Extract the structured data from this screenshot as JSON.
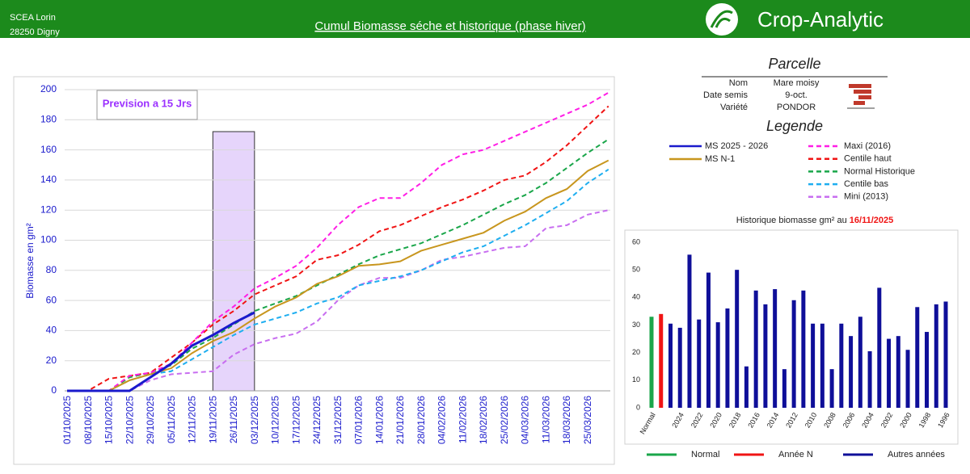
{
  "header": {
    "farm": "SCEA Lorin",
    "address": "28250 Digny",
    "title": "Cumul Biomasse séche et historique (phase hiver)",
    "brand": "Crop-Analytic"
  },
  "parcelle": {
    "title": "Parcelle",
    "rows": [
      [
        "Nom",
        "Mare moisy"
      ],
      [
        "Date semis",
        "9-oct."
      ],
      [
        "Variété",
        "PONDOR"
      ]
    ],
    "legend_title": "Legende"
  },
  "chart_data": [
    {
      "type": "line",
      "ylabel": "Biomasse en gm²",
      "annotation": "Prevision a 15 Jrs",
      "forecast_window": [
        "19/11/2025",
        "03/12/2025"
      ],
      "categories": [
        "01/10/2025",
        "08/10/2025",
        "15/10/2025",
        "22/10/2025",
        "29/10/2025",
        "05/11/2025",
        "12/11/2025",
        "19/11/2025",
        "26/11/2025",
        "03/12/2025",
        "10/12/2025",
        "17/12/2025",
        "24/12/2025",
        "31/12/2025",
        "07/01/2026",
        "14/01/2026",
        "21/01/2026",
        "28/01/2026",
        "04/02/2026",
        "11/02/2026",
        "18/02/2026",
        "25/02/2026",
        "04/03/2026",
        "11/03/2026",
        "18/03/2026",
        "25/03/2026",
        null
      ],
      "ylim": [
        0,
        200
      ],
      "yticks": [
        0,
        20,
        40,
        60,
        80,
        100,
        120,
        140,
        160,
        180,
        200
      ],
      "grid": true,
      "series": [
        {
          "name": "MS 2025 - 2026",
          "color": "#1a1acc",
          "style": "solid",
          "bold": true,
          "values": [
            0,
            0,
            0,
            0,
            9,
            18,
            30,
            37,
            45,
            52,
            null,
            null,
            null,
            null,
            null,
            null,
            null,
            null,
            null,
            null,
            null,
            null,
            null,
            null,
            null,
            null,
            null
          ]
        },
        {
          "name": "MS N-1",
          "color": "#c8961e",
          "style": "solid",
          "values": [
            0,
            0,
            0,
            7,
            11,
            15,
            25,
            33,
            39,
            48,
            56,
            62,
            71,
            76,
            83,
            84,
            86,
            93,
            97,
            101,
            105,
            113,
            119,
            128,
            134,
            146,
            153
          ]
        },
        {
          "name": "Maxi (2016)",
          "color": "#ff1ee6",
          "style": "dashed",
          "values": [
            0,
            0,
            0,
            10,
            12,
            18,
            32,
            46,
            56,
            68,
            75,
            83,
            95,
            110,
            122,
            128,
            128,
            138,
            150,
            157,
            160,
            166,
            172,
            178,
            184,
            190,
            198
          ]
        },
        {
          "name": "Centile haut",
          "color": "#f01414",
          "style": "dashed",
          "values": [
            0,
            0,
            8,
            10,
            12,
            22,
            32,
            44,
            53,
            64,
            70,
            76,
            87,
            90,
            97,
            106,
            110,
            116,
            122,
            127,
            133,
            140,
            143,
            152,
            163,
            176,
            189
          ]
        },
        {
          "name": "Normal Historique",
          "color": "#1aa64a",
          "style": "dashed",
          "values": [
            0,
            0,
            0,
            9,
            12,
            17,
            28,
            35,
            44,
            53,
            58,
            63,
            70,
            77,
            84,
            90,
            94,
            98,
            104,
            110,
            117,
            124,
            130,
            138,
            148,
            158,
            167
          ]
        },
        {
          "name": "Centile bas",
          "color": "#1eaef0",
          "style": "dashed",
          "values": [
            0,
            0,
            0,
            7,
            11,
            13,
            21,
            29,
            37,
            44,
            48,
            52,
            58,
            62,
            70,
            73,
            76,
            80,
            86,
            92,
            96,
            103,
            110,
            118,
            126,
            138,
            147
          ]
        },
        {
          "name": "Mini (2013)",
          "color": "#c86ef0",
          "style": "dashed",
          "values": [
            0,
            0,
            0,
            0,
            7,
            11,
            12,
            13,
            24,
            31,
            35,
            38,
            46,
            60,
            70,
            75,
            75,
            80,
            87,
            89,
            92,
            95,
            96,
            108,
            110,
            117,
            120
          ]
        }
      ]
    },
    {
      "type": "bar",
      "title": "Historique biomasse gm² au",
      "title_date": "16/11/2025",
      "categories": [
        "Normal",
        null,
        null,
        "2024",
        null,
        "2022",
        null,
        "2020",
        null,
        "2018",
        null,
        "2016",
        null,
        "2014",
        null,
        "2012",
        null,
        "2010",
        null,
        "2008",
        null,
        "2006",
        null,
        "2004",
        null,
        "2002",
        null,
        "2000",
        null,
        "1998",
        null,
        "1996"
      ],
      "ylim": [
        0,
        60
      ],
      "yticks": [
        0,
        10,
        20,
        30,
        40,
        50,
        60
      ],
      "grid": false,
      "series": [
        {
          "name": "Normal",
          "color": "#1aa64a",
          "values": [
            33,
            null,
            null,
            null,
            null,
            null,
            null,
            null,
            null,
            null,
            null,
            null,
            null,
            null,
            null,
            null,
            null,
            null,
            null,
            null,
            null,
            null,
            null,
            null,
            null,
            null,
            null,
            null,
            null,
            null,
            null,
            null
          ]
        },
        {
          "name": "Année N",
          "color": "#f01414",
          "values": [
            null,
            34,
            null,
            null,
            null,
            null,
            null,
            null,
            null,
            null,
            null,
            null,
            null,
            null,
            null,
            null,
            null,
            null,
            null,
            null,
            null,
            null,
            null,
            null,
            null,
            null,
            null,
            null,
            null,
            null,
            null,
            null
          ]
        },
        {
          "name": "Autres années",
          "color": "#0f0f99",
          "values": [
            null,
            null,
            30.5,
            29,
            55.5,
            32,
            49,
            31,
            36,
            50,
            15,
            42.5,
            37.5,
            43,
            14,
            39,
            42.5,
            30.5,
            30.5,
            14,
            30.5,
            26,
            33,
            20.5,
            43.5,
            25,
            26,
            21,
            36.5,
            27.5,
            37.5,
            38.5
          ]
        }
      ]
    }
  ]
}
